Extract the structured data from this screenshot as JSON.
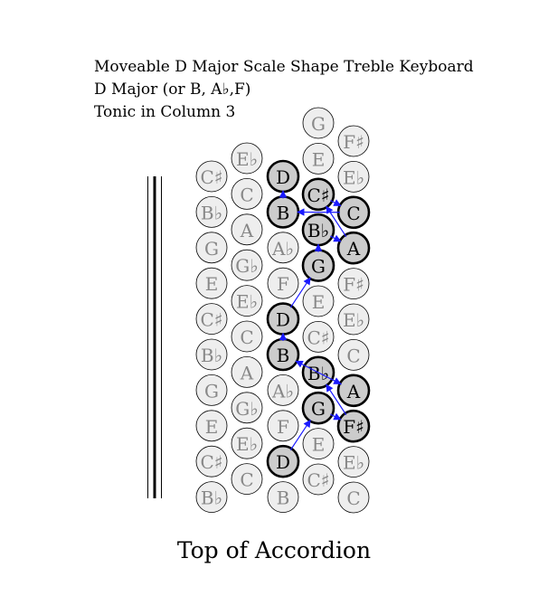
{
  "title": {
    "line1": "Moveable D Major Scale Shape Treble Keyboard",
    "line2": "D Major (or B, A♭,F)",
    "line3": "Tonic in Column 3"
  },
  "footer": "Top of Accordion",
  "colors": {
    "button_fill": "#eeeeee",
    "highlight_fill": "#cccccc",
    "inactive_text": "#888888",
    "active_text": "#000000",
    "arrow": "#1a1aff"
  },
  "keyboard": {
    "columns": [
      {
        "id": 1,
        "notes": [
          "C♯",
          "B♭",
          "G",
          "E",
          "C♯",
          "B♭",
          "G",
          "E",
          "C♯",
          "B♭"
        ]
      },
      {
        "id": 2,
        "notes": [
          "E♭",
          "C",
          "A",
          "G♭",
          "E♭",
          "C",
          "A",
          "G♭",
          "E♭",
          "C"
        ]
      },
      {
        "id": 3,
        "notes": [
          "D",
          "B",
          "A♭",
          "F",
          "D",
          "B",
          "A♭",
          "F",
          "D",
          "B"
        ]
      },
      {
        "id": 4,
        "notes": [
          "G",
          "E",
          "C♯",
          "B♭",
          "G",
          "E",
          "C♯",
          "B♭",
          "G",
          "E",
          "C♯"
        ]
      },
      {
        "id": 5,
        "notes": [
          "F♯",
          "E♭",
          "C",
          "A",
          "F♯",
          "E♭",
          "C",
          "A",
          "F♯",
          "E♭",
          "C"
        ]
      }
    ],
    "scale_path": [
      [
        3,
        8
      ],
      [
        4,
        8
      ],
      [
        5,
        8
      ],
      [
        4,
        7
      ],
      [
        5,
        7
      ],
      [
        3,
        5
      ],
      [
        3,
        4
      ],
      [
        4,
        4
      ],
      [
        4,
        3
      ],
      [
        5,
        3
      ],
      [
        4,
        2
      ],
      [
        5,
        2
      ],
      [
        3,
        1
      ],
      [
        3,
        0
      ]
    ]
  }
}
